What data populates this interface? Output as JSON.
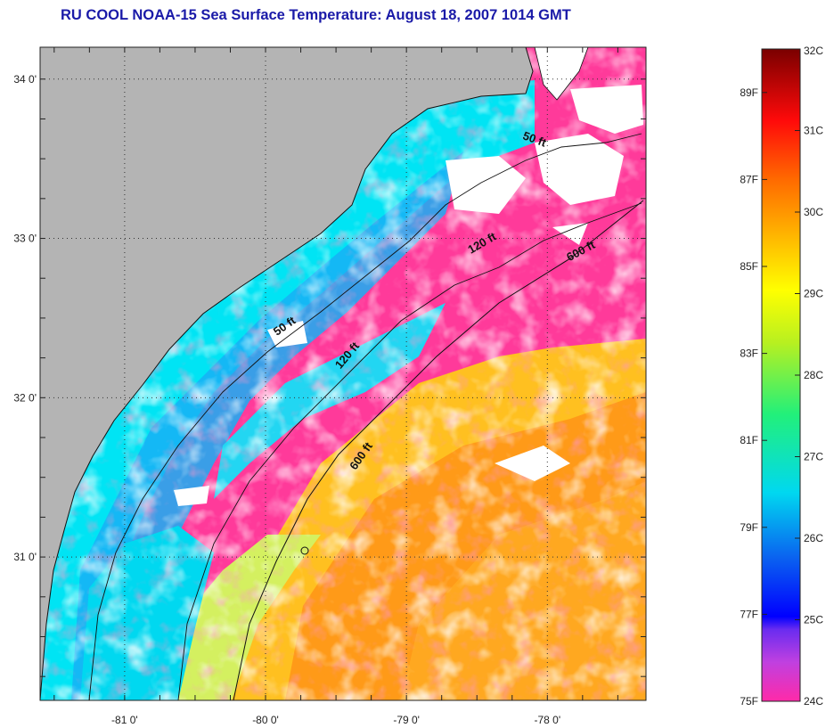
{
  "title": "RU COOL  NOAA-15  Sea Surface Temperature:  August 18, 2007 1014 GMT",
  "map": {
    "lon_range": [
      -81.6,
      -77.3
    ],
    "lat_range": [
      30.1,
      34.2
    ],
    "lat_ticks": [
      {
        "value": 34,
        "label": "34 0'"
      },
      {
        "value": 33,
        "label": "33 0'"
      },
      {
        "value": 32,
        "label": "32 0'"
      },
      {
        "value": 31,
        "label": "31 0'"
      }
    ],
    "lon_ticks": [
      {
        "value": -81,
        "label": "-81 0'"
      },
      {
        "value": -80,
        "label": "-80 0'"
      },
      {
        "value": -79,
        "label": "-79 0'"
      },
      {
        "value": -78,
        "label": "-78 0'"
      }
    ],
    "isobaths": [
      {
        "label": "50 ft",
        "lon": -78.1,
        "lat": 33.6,
        "angle": 20
      },
      {
        "label": "120 ft",
        "lon": -78.45,
        "lat": 32.95,
        "angle": -30
      },
      {
        "label": "600 ft",
        "lon": -77.75,
        "lat": 32.9,
        "angle": -28
      },
      {
        "label": "50 ft",
        "lon": -79.85,
        "lat": 32.43,
        "angle": -35
      },
      {
        "label": "120 ft",
        "lon": -79.4,
        "lat": 32.25,
        "angle": -50
      },
      {
        "label": "600 ft",
        "lon": -79.3,
        "lat": 31.62,
        "angle": -55
      }
    ],
    "colors": {
      "land": "#b4b4b4",
      "cloud": "#ffffff",
      "coast": "#111111",
      "grid": "#333333"
    }
  },
  "colorbar": {
    "left_labels": [
      "89F",
      "87F",
      "85F",
      "83F",
      "81F",
      "79F",
      "77F",
      "75F"
    ],
    "right_labels": [
      "32C",
      "31C",
      "30C",
      "29C",
      "28C",
      "27C",
      "26C",
      "25C",
      "24C"
    ]
  }
}
